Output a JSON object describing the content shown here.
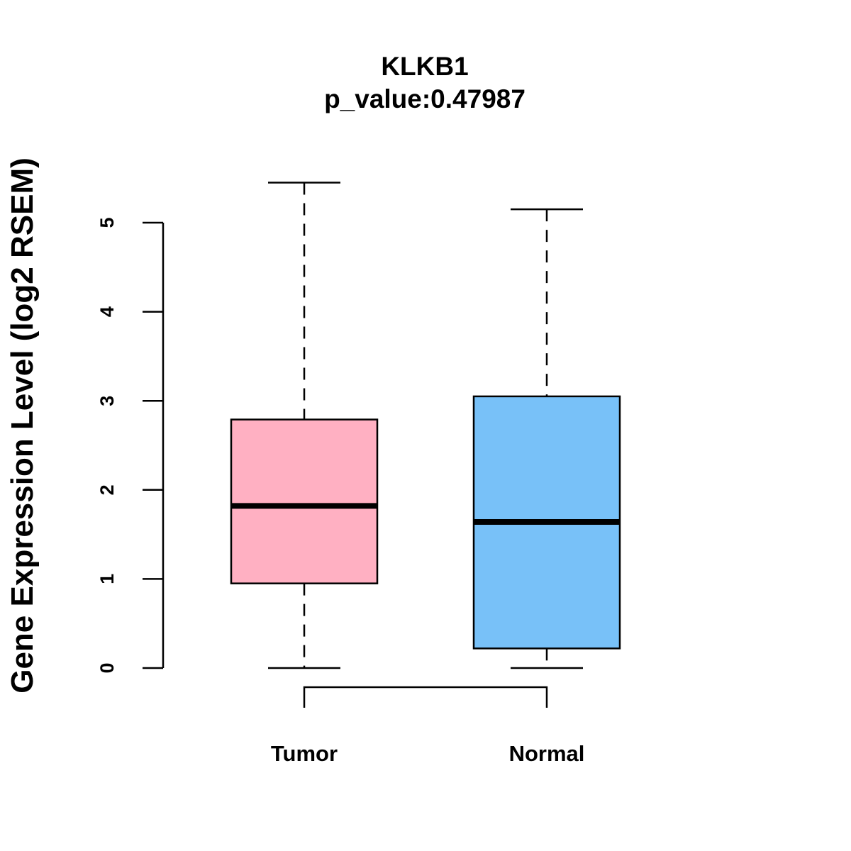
{
  "chart_data": {
    "type": "boxplot",
    "title": "KLKB1",
    "subtitle": "p_value:0.47987",
    "xlabel": "",
    "ylabel": "Gene Expression Level (log2 RSEM)",
    "yticks": [
      0,
      1,
      2,
      3,
      4,
      5
    ],
    "ylim": [
      0,
      5
    ],
    "grid": false,
    "categories": [
      "Tumor",
      "Normal"
    ],
    "boxes": [
      {
        "name": "Tumor",
        "min": 0,
        "q1": 0.95,
        "median": 1.82,
        "q3": 2.79,
        "max": 5.45,
        "color": "#FFB0C2"
      },
      {
        "name": "Normal",
        "min": 0,
        "q1": 0.22,
        "median": 1.64,
        "q3": 3.05,
        "max": 5.15,
        "color": "#78C1F8"
      }
    ],
    "comparison_bracket": [
      "Tumor",
      "Normal"
    ]
  }
}
